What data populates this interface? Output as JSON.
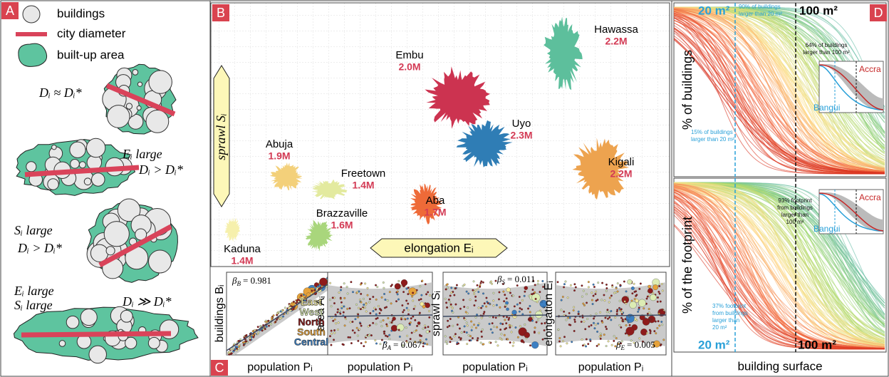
{
  "panel_a": {
    "label": "A",
    "legend": [
      "buildings",
      "city diameter",
      "built-up area"
    ],
    "cases": [
      {
        "texts": [
          "Dᵢ ≈ Dᵢ*"
        ]
      },
      {
        "texts": [
          "Eᵢ large",
          "Dᵢ > Dᵢ*"
        ]
      },
      {
        "texts": [
          "Sᵢ large",
          "Dᵢ > Dᵢ*"
        ]
      },
      {
        "texts": [
          "Eᵢ large",
          "Sᵢ large",
          "Dᵢ ≫ Dᵢ*"
        ]
      }
    ]
  },
  "panel_b": {
    "label": "B",
    "y_axis": "sprawl Sᵢ",
    "x_axis": "elongation Eᵢ",
    "cities": [
      {
        "name": "Hawassa",
        "population": "2.2M",
        "color": "#5dbf9c"
      },
      {
        "name": "Embu",
        "population": "2.0M",
        "color": "#cc3350"
      },
      {
        "name": "Uyo",
        "population": "2.3M",
        "color": "#2f7db5"
      },
      {
        "name": "Kigali",
        "population": "2.2M",
        "color": "#eda34f"
      },
      {
        "name": "Abuja",
        "population": "1.9M",
        "color": "#f3d07a"
      },
      {
        "name": "Freetown",
        "population": "1.4M",
        "color": "#e3ea9f"
      },
      {
        "name": "Aba",
        "population": "1.7M",
        "color": "#ee6a38"
      },
      {
        "name": "Brazzaville",
        "population": "1.6M",
        "color": "#a9d67c"
      },
      {
        "name": "Kaduna",
        "population": "1.4M",
        "color": "#f6f0ac"
      }
    ]
  },
  "panel_c": {
    "label": "C",
    "x_axis": "population Pᵢ",
    "legend": [
      {
        "name": "East",
        "color": "#f4ec9c"
      },
      {
        "name": "West",
        "color": "#dcecb4"
      },
      {
        "name": "North",
        "color": "#8e1b1b"
      },
      {
        "name": "South",
        "color": "#e6a23a"
      },
      {
        "name": "Central",
        "color": "#3c7fc2"
      }
    ],
    "plots": [
      {
        "y_axis": "buildings Bᵢ",
        "beta": {
          "symbol": "β",
          "subscript": "B",
          "value": "= 0.981"
        }
      },
      {
        "y_axis": "area Aᵢ",
        "beta": {
          "symbol": "β",
          "subscript": "A",
          "value": "= 0.067"
        }
      },
      {
        "y_axis": "sprawl Sᵢ",
        "beta": {
          "symbol": "β",
          "subscript": "S",
          "value": "= 0.011"
        }
      },
      {
        "y_axis": "elongation Eᵢ",
        "beta": {
          "symbol": "β",
          "subscript": "E",
          "value": "= 0.005"
        }
      }
    ]
  },
  "panel_d": {
    "label": "D",
    "x_axis": "building surface",
    "plots": [
      {
        "y_axis": "% of buildings",
        "threshold_low": "20 m²",
        "threshold_high": "100 m²",
        "notes": [
          [
            "90% of buildings",
            "larger than 20 m²"
          ],
          [
            "64% of buildings",
            "larger than 100 m²"
          ],
          [
            "15% of buildings",
            "larger than 20 m²"
          ]
        ],
        "inset": [
          "Accra",
          "Bangui"
        ]
      },
      {
        "y_axis": "% of the footprint",
        "threshold_low": "20 m²",
        "threshold_high": "100 m²",
        "notes": [
          [
            "93% footprint",
            "from buildings",
            "larger than",
            "100 m²"
          ],
          [
            "37% footprint",
            "from buildings",
            "larger than",
            "20 m²"
          ]
        ],
        "inset": [
          "Accra",
          "Bangui"
        ]
      }
    ]
  }
}
